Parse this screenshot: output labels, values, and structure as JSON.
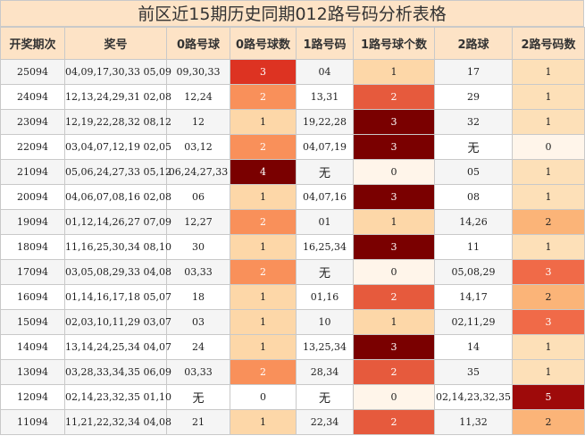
{
  "title": "前区近15期历史同期012路号码分析表格",
  "headers": [
    "开奖期次",
    "奖号",
    "0路号球",
    "0路号球数",
    "1路号码",
    "1路号球个数",
    "2路球",
    "2路号码数"
  ],
  "count_colors": {
    "0": "#fff5ea",
    "1": "#fdd7a8",
    "2": "#f9905a",
    "3": "#6d0000",
    "4": "#6d0000"
  },
  "count_colors_by_column": {
    "zero": {
      "1": "#fdd7a8",
      "2": "#f9905a",
      "3": "#dd3322",
      "4": "#7a0000"
    },
    "one": {
      "0": "#fff5ea",
      "1": "#fdd7a8",
      "2": "#e65a3d",
      "3": "#7a0000"
    },
    "two": {
      "0": "#fff5ea",
      "1": "#fde0b8",
      "2": "#fbb478",
      "3": "#f06a48",
      "5": "#9e0a0a"
    }
  },
  "rows": [
    {
      "period": "25094",
      "numbers": "04,09,17,30,33 05,09",
      "zero": "09,30,33",
      "zero_count": "3",
      "one": "04",
      "one_count": "1",
      "two": "17",
      "two_count": "1"
    },
    {
      "period": "24094",
      "numbers": "12,13,24,29,31 02,08",
      "zero": "12,24",
      "zero_count": "2",
      "one": "13,31",
      "one_count": "2",
      "two": "29",
      "two_count": "1"
    },
    {
      "period": "23094",
      "numbers": "12,19,22,28,32 08,12",
      "zero": "12",
      "zero_count": "1",
      "one": "19,22,28",
      "one_count": "3",
      "two": "32",
      "two_count": "1"
    },
    {
      "period": "22094",
      "numbers": "03,04,07,12,19 02,05",
      "zero": "03,12",
      "zero_count": "2",
      "one": "04,07,19",
      "one_count": "3",
      "two": "无",
      "two_count": "0"
    },
    {
      "period": "21094",
      "numbers": "05,06,24,27,33 05,12",
      "zero": "06,24,27,33",
      "zero_count": "4",
      "one": "无",
      "one_count": "0",
      "two": "05",
      "two_count": "1"
    },
    {
      "period": "20094",
      "numbers": "04,06,07,08,16 02,08",
      "zero": "06",
      "zero_count": "1",
      "one": "04,07,16",
      "one_count": "3",
      "two": "08",
      "two_count": "1"
    },
    {
      "period": "19094",
      "numbers": "01,12,14,26,27 07,09",
      "zero": "12,27",
      "zero_count": "2",
      "one": "01",
      "one_count": "1",
      "two": "14,26",
      "two_count": "2"
    },
    {
      "period": "18094",
      "numbers": "11,16,25,30,34 08,10",
      "zero": "30",
      "zero_count": "1",
      "one": "16,25,34",
      "one_count": "3",
      "two": "11",
      "two_count": "1"
    },
    {
      "period": "17094",
      "numbers": "03,05,08,29,33 04,08",
      "zero": "03,33",
      "zero_count": "2",
      "one": "无",
      "one_count": "0",
      "two": "05,08,29",
      "two_count": "3"
    },
    {
      "period": "16094",
      "numbers": "01,14,16,17,18 05,07",
      "zero": "18",
      "zero_count": "1",
      "one": "01,16",
      "one_count": "2",
      "two": "14,17",
      "two_count": "2"
    },
    {
      "period": "15094",
      "numbers": "02,03,10,11,29 03,07",
      "zero": "03",
      "zero_count": "1",
      "one": "10",
      "one_count": "1",
      "two": "02,11,29",
      "two_count": "3"
    },
    {
      "period": "14094",
      "numbers": "13,14,24,25,34 04,07",
      "zero": "24",
      "zero_count": "1",
      "one": "13,25,34",
      "one_count": "3",
      "two": "14",
      "two_count": "1"
    },
    {
      "period": "13094",
      "numbers": "03,28,33,34,35 06,09",
      "zero": "03,33",
      "zero_count": "2",
      "one": "28,34",
      "one_count": "2",
      "two": "35",
      "two_count": "1"
    },
    {
      "period": "12094",
      "numbers": "02,14,23,32,35 01,10",
      "zero": "无",
      "zero_count": "0",
      "one": "无",
      "one_count": "0",
      "two": "02,14,23,32,35",
      "two_count": "5"
    },
    {
      "period": "11094",
      "numbers": "11,21,22,32,34 04,08",
      "zero": "21",
      "zero_count": "1",
      "one": "22,34",
      "one_count": "2",
      "two": "11,32",
      "two_count": "2"
    }
  ]
}
